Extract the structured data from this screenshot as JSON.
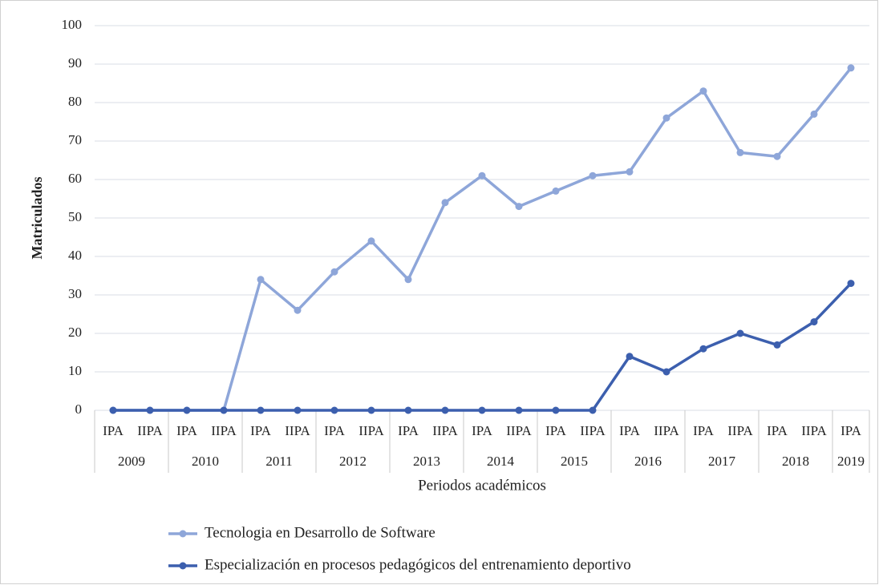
{
  "chart_data": {
    "type": "line",
    "y_label": "Matriculados",
    "x_label": "Periodos académicos",
    "category_groups": [
      {
        "label": "2009",
        "categories": [
          "IPA",
          "IIPA"
        ]
      },
      {
        "label": "2010",
        "categories": [
          "IPA",
          "IIPA"
        ]
      },
      {
        "label": "2011",
        "categories": [
          "IPA",
          "IIPA"
        ]
      },
      {
        "label": "2012",
        "categories": [
          "IPA",
          "IIPA"
        ]
      },
      {
        "label": "2013",
        "categories": [
          "IPA",
          "IIPA"
        ]
      },
      {
        "label": "2014",
        "categories": [
          "IPA",
          "IIPA"
        ]
      },
      {
        "label": "2015",
        "categories": [
          "IPA",
          "IIPA"
        ]
      },
      {
        "label": "2016",
        "categories": [
          "IPA",
          "IIPA"
        ]
      },
      {
        "label": "2017",
        "categories": [
          "IPA",
          "IIPA"
        ]
      },
      {
        "label": "2018",
        "categories": [
          "IPA",
          "IIPA"
        ]
      },
      {
        "label": "2019",
        "categories": [
          "IPA"
        ]
      }
    ],
    "series": [
      {
        "name": "Tecnologia en Desarrollo de Software",
        "color": "#8ea6d9",
        "values": [
          0,
          0,
          0,
          0,
          34,
          26,
          36,
          44,
          34,
          54,
          61,
          53,
          57,
          61,
          62,
          76,
          83,
          67,
          66,
          77,
          89
        ]
      },
      {
        "name": "Especialización en procesos pedagógicos del entrenamiento deportivo",
        "color": "#3c5fae",
        "values": [
          0,
          0,
          0,
          0,
          0,
          0,
          0,
          0,
          0,
          0,
          0,
          0,
          0,
          0,
          14,
          10,
          16,
          20,
          17,
          23,
          33
        ]
      }
    ],
    "ylim": [
      0,
      100
    ],
    "yticks": [
      0,
      10,
      20,
      30,
      40,
      50,
      60,
      70,
      80,
      90,
      100
    ],
    "grid": true,
    "legend": "bottom"
  }
}
